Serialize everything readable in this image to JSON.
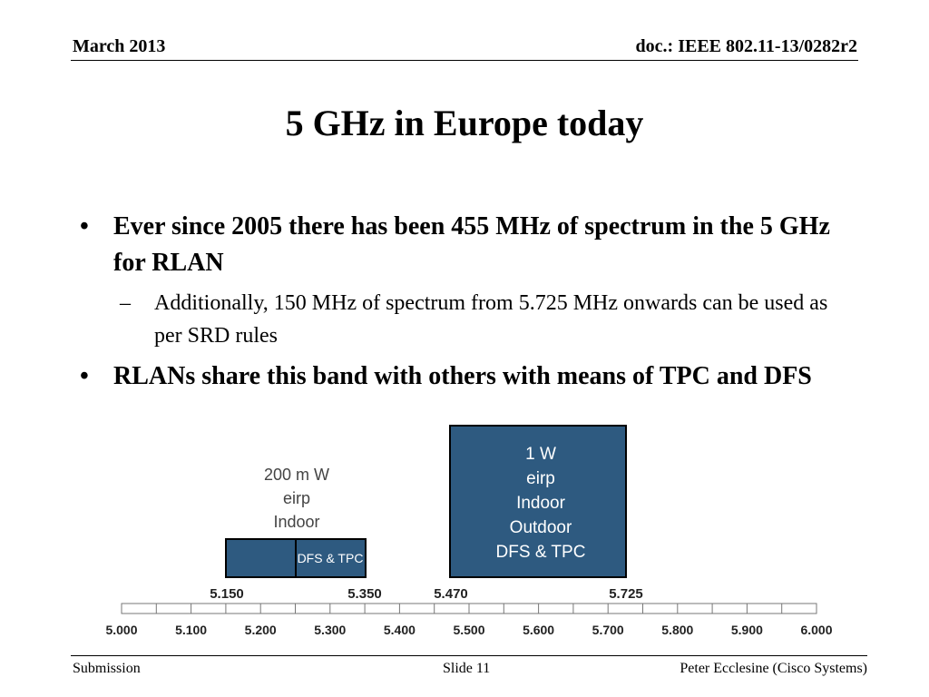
{
  "header": {
    "date": "March 2013",
    "doc": "doc.: IEEE 802.11-13/0282r2"
  },
  "title": "5 GHz in Europe today",
  "bullets": [
    {
      "marker": "•",
      "text": "Ever since 2005 there has been 455 MHz of spectrum in the 5 GHz for RLAN"
    },
    {
      "marker": "•",
      "text": "RLANs share this band with others with means of TPC and DFS"
    }
  ],
  "sub_bullets": [
    {
      "marker": "–",
      "text": "Additionally, 150 MHz of spectrum from 5.725 MHz onwards can be used as per SRD rules"
    }
  ],
  "diagram": {
    "box_color": "#2e5a80",
    "low_band": {
      "label_lines": [
        "200 m W",
        "eirp",
        "Indoor"
      ],
      "inner_label": "DFS & TPC",
      "start": "5.150",
      "end": "5.350"
    },
    "high_band": {
      "label_lines": [
        "1 W",
        "eirp",
        "Indoor",
        "Outdoor",
        "DFS & TPC"
      ],
      "start": "5.470",
      "end": "5.725"
    },
    "axis_ticks": [
      "5.000",
      "5.100",
      "5.200",
      "5.300",
      "5.400",
      "5.500",
      "5.600",
      "5.700",
      "5.800",
      "5.900",
      "6.000"
    ]
  },
  "footer": {
    "left": "Submission",
    "center": "Slide 11",
    "right": "Peter Ecclesine (Cisco Systems)"
  }
}
